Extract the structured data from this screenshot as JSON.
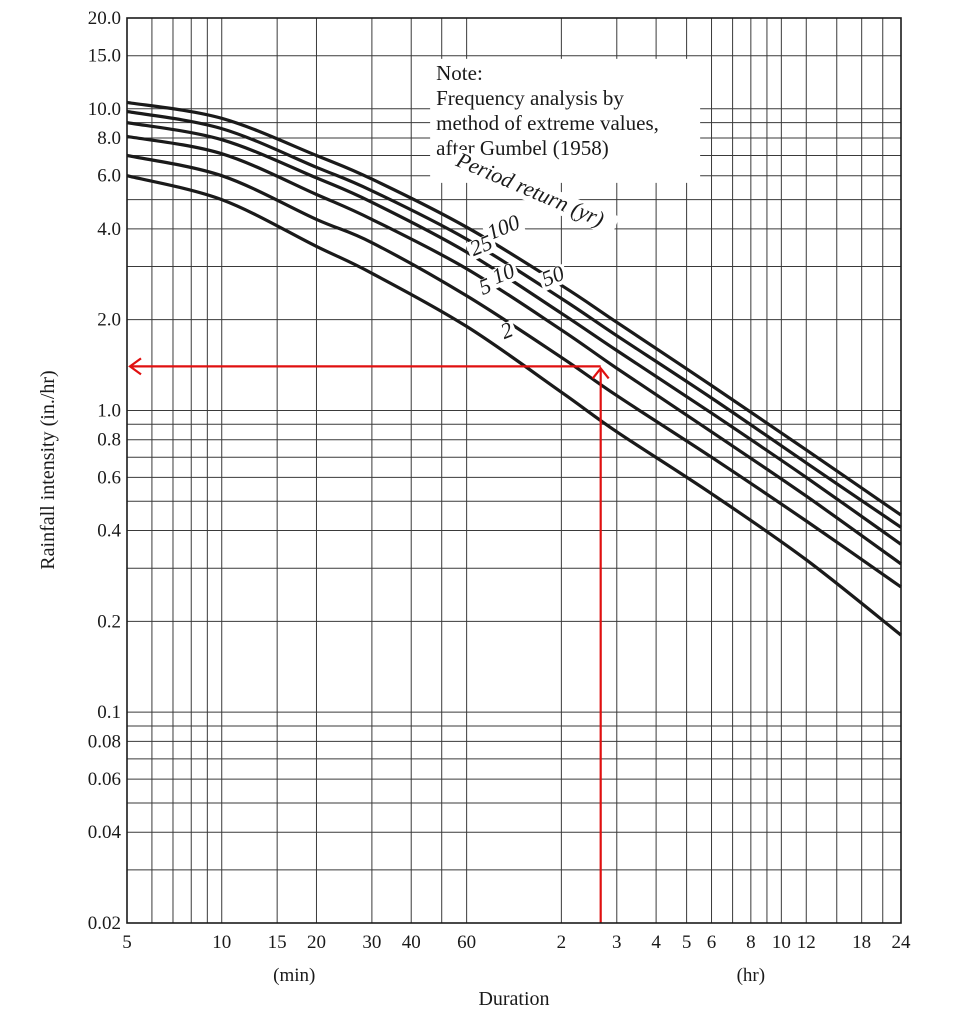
{
  "chart_data": {
    "type": "line",
    "title": "",
    "xlabel": "Duration",
    "ylabel": "Rainfall intensity (in./hr)",
    "x_scale": "log",
    "y_scale": "log",
    "x_unit": "min",
    "xlim": [
      5,
      1440
    ],
    "ylim": [
      0.02,
      20.0
    ],
    "x_ticks": [
      {
        "value": 5,
        "label": "5"
      },
      {
        "value": 10,
        "label": "10"
      },
      {
        "value": 15,
        "label": "15"
      },
      {
        "value": 20,
        "label": "20"
      },
      {
        "value": 30,
        "label": "30"
      },
      {
        "value": 40,
        "label": "40"
      },
      {
        "value": 60,
        "label": "60"
      },
      {
        "value": 120,
        "label": "2"
      },
      {
        "value": 180,
        "label": "3"
      },
      {
        "value": 240,
        "label": "4"
      },
      {
        "value": 300,
        "label": "5"
      },
      {
        "value": 360,
        "label": "6"
      },
      {
        "value": 480,
        "label": "8"
      },
      {
        "value": 600,
        "label": "10"
      },
      {
        "value": 720,
        "label": "12"
      },
      {
        "value": 1080,
        "label": "18"
      },
      {
        "value": 1440,
        "label": "24"
      }
    ],
    "x_unit_labels": [
      {
        "text": "(min)",
        "at": 17
      },
      {
        "text": "(hr)",
        "at": 480
      }
    ],
    "y_ticks": [
      {
        "value": 20,
        "label": "20.0"
      },
      {
        "value": 15,
        "label": "15.0"
      },
      {
        "value": 10,
        "label": "10.0"
      },
      {
        "value": 8,
        "label": "8.0"
      },
      {
        "value": 6,
        "label": "6.0"
      },
      {
        "value": 4,
        "label": "4.0"
      },
      {
        "value": 2,
        "label": "2.0"
      },
      {
        "value": 1,
        "label": "1.0"
      },
      {
        "value": 0.8,
        "label": "0.8"
      },
      {
        "value": 0.6,
        "label": "0.6"
      },
      {
        "value": 0.4,
        "label": "0.4"
      },
      {
        "value": 0.2,
        "label": "0.2"
      },
      {
        "value": 0.1,
        "label": "0.1"
      },
      {
        "value": 0.08,
        "label": "0.08"
      },
      {
        "value": 0.06,
        "label": "0.06"
      },
      {
        "value": 0.04,
        "label": "0.04"
      },
      {
        "value": 0.02,
        "label": "0.02"
      }
    ],
    "x_grid": [
      5,
      6,
      7,
      8,
      9,
      10,
      15,
      20,
      30,
      40,
      50,
      60,
      120,
      180,
      240,
      300,
      360,
      420,
      480,
      540,
      600,
      720,
      900,
      1080,
      1260,
      1440
    ],
    "y_grid": [
      0.02,
      0.03,
      0.04,
      0.05,
      0.06,
      0.07,
      0.08,
      0.09,
      0.1,
      0.2,
      0.3,
      0.4,
      0.5,
      0.6,
      0.7,
      0.8,
      0.9,
      1,
      2,
      3,
      4,
      5,
      6,
      7,
      8,
      9,
      10,
      15,
      20
    ],
    "grid": true,
    "legend": "none",
    "series": [
      {
        "name": "2",
        "x": [
          5,
          10,
          20,
          30,
          60,
          120,
          180,
          360,
          720,
          1440
        ],
        "y": [
          6.0,
          5.0,
          3.5,
          2.85,
          1.9,
          1.15,
          0.85,
          0.53,
          0.32,
          0.18
        ]
      },
      {
        "name": "5",
        "x": [
          5,
          10,
          20,
          30,
          60,
          120,
          180,
          360,
          720,
          1440
        ],
        "y": [
          7.0,
          6.0,
          4.3,
          3.6,
          2.4,
          1.5,
          1.12,
          0.7,
          0.43,
          0.26
        ]
      },
      {
        "name": "10",
        "x": [
          5,
          10,
          20,
          30,
          60,
          120,
          180,
          360,
          720,
          1440
        ],
        "y": [
          8.1,
          7.1,
          5.2,
          4.3,
          2.95,
          1.85,
          1.38,
          0.85,
          0.52,
          0.31
        ]
      },
      {
        "name": "25",
        "x": [
          5,
          10,
          20,
          30,
          60,
          120,
          180,
          360,
          720,
          1440
        ],
        "y": [
          9.0,
          7.9,
          5.9,
          4.9,
          3.35,
          2.1,
          1.58,
          0.98,
          0.6,
          0.36
        ]
      },
      {
        "name": "50",
        "x": [
          5,
          10,
          20,
          30,
          60,
          120,
          180,
          360,
          720,
          1440
        ],
        "y": [
          9.8,
          8.6,
          6.4,
          5.35,
          3.7,
          2.35,
          1.77,
          1.1,
          0.67,
          0.41
        ]
      },
      {
        "name": "100",
        "x": [
          5,
          10,
          20,
          30,
          60,
          120,
          180,
          360,
          720,
          1440
        ],
        "y": [
          10.5,
          9.3,
          7.0,
          5.85,
          4.05,
          2.6,
          1.96,
          1.21,
          0.74,
          0.45
        ]
      }
    ],
    "curve_labels": [
      {
        "text": "100",
        "x": 80,
        "y": 3.85,
        "angle": -22
      },
      {
        "text": "25",
        "x": 68,
        "y": 3.35,
        "angle": -22
      },
      {
        "text": "10",
        "x": 80,
        "y": 2.7,
        "angle": -22
      },
      {
        "text": "50",
        "x": 115,
        "y": 2.65,
        "angle": -22
      },
      {
        "text": "5",
        "x": 70,
        "y": 2.45,
        "angle": -22
      },
      {
        "text": "2",
        "x": 82,
        "y": 1.75,
        "angle": -22
      }
    ],
    "annotations": [
      {
        "text": "Period return (yr)",
        "x": 55,
        "y": 6.5,
        "angle": 23
      },
      {
        "text": "Note:",
        "x": 48,
        "y": 14.2,
        "line": 0
      },
      {
        "text": "Frequency analysis by",
        "x": 48,
        "y": 14.2,
        "line": 1
      },
      {
        "text": "method of extreme values,",
        "x": 48,
        "y": 14.2,
        "line": 2
      },
      {
        "text": "after Gumbel (1958)",
        "x": 48,
        "y": 14.2,
        "line": 3
      }
    ],
    "lookup": {
      "x": 160,
      "y": 1.4,
      "color": "#e01010"
    }
  }
}
